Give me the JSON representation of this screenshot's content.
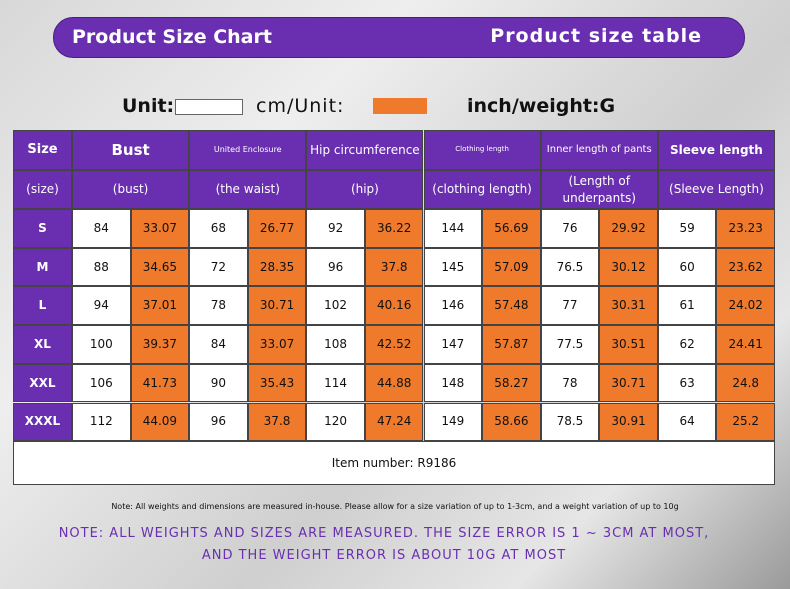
{
  "header": {
    "title": "Product Size Chart",
    "subtitle": "Product size table"
  },
  "units": {
    "cm": "Unit:",
    "inch": "cm/Unit:",
    "weight": "inch/weight:G"
  },
  "table": {
    "header_top": [
      "Size",
      "Bust",
      "United Enclosure",
      "Hip circumference",
      "Clothing length",
      "Inner length of pants",
      "Sleeve length"
    ],
    "header_bottom": [
      "(size)",
      "(bust)",
      "(the waist)",
      "(hip)",
      "(clothing length)",
      "(Length of underpants)",
      "(Sleeve Length)"
    ],
    "rows": [
      [
        "S",
        "84",
        "33.07",
        "68",
        "26.77",
        "92",
        "36.22",
        "144",
        "56.69",
        "76",
        "29.92",
        "59",
        "23.23"
      ],
      [
        "M",
        "88",
        "34.65",
        "72",
        "28.35",
        "96",
        "37.8",
        "145",
        "57.09",
        "76.5",
        "30.12",
        "60",
        "23.62"
      ],
      [
        "L",
        "94",
        "37.01",
        "78",
        "30.71",
        "102",
        "40.16",
        "146",
        "57.48",
        "77",
        "30.31",
        "61",
        "24.02"
      ],
      [
        "XL",
        "100",
        "39.37",
        "84",
        "33.07",
        "108",
        "42.52",
        "147",
        "57.87",
        "77.5",
        "30.51",
        "62",
        "24.41"
      ],
      [
        "XXL",
        "106",
        "41.73",
        "90",
        "35.43",
        "114",
        "44.88",
        "148",
        "58.27",
        "78",
        "30.71",
        "63",
        "24.8"
      ],
      [
        "XXXL",
        "112",
        "44.09",
        "96",
        "37.8",
        "120",
        "47.24",
        "149",
        "58.66",
        "78.5",
        "30.91",
        "64",
        "25.2"
      ]
    ],
    "footer": "Item number: R9186"
  },
  "notes": {
    "small": "Note: All weights and dimensions are measured in-house. Please allow for a size variation of up to 1-3cm, and a weight variation of up to 10g",
    "purple": [
      "NOTE: ALL WEIGHTS AND SIZES ARE MEASURED. THE SIZE ERROR IS 1 ~ 3CM AT MOST,",
      "AND THE WEIGHT ERROR IS ABOUT 10G AT MOST"
    ]
  }
}
